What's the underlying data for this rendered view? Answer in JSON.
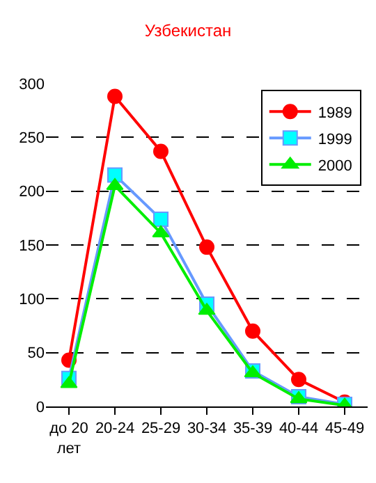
{
  "chart_data": {
    "type": "line",
    "title": "Узбекистан",
    "categories": [
      "до 20 лет",
      "20-24",
      "25-29",
      "30-34",
      "35-39",
      "40-44",
      "45-49"
    ],
    "series": [
      {
        "name": "1989",
        "color": "#ff0000",
        "marker": "circle",
        "values": [
          43,
          288,
          237,
          148,
          70,
          25,
          4
        ]
      },
      {
        "name": "1999",
        "color": "#6699ff",
        "marker": "square",
        "values": [
          26,
          215,
          174,
          95,
          33,
          9,
          2
        ]
      },
      {
        "name": "2000",
        "color": "#00ee00",
        "marker": "triangle",
        "values": [
          21,
          205,
          161,
          89,
          31,
          7,
          1
        ]
      }
    ],
    "ylim": [
      0,
      300
    ],
    "yticks": [
      0,
      50,
      100,
      150,
      200,
      250,
      300
    ],
    "grid": "y",
    "legend": "top right"
  }
}
